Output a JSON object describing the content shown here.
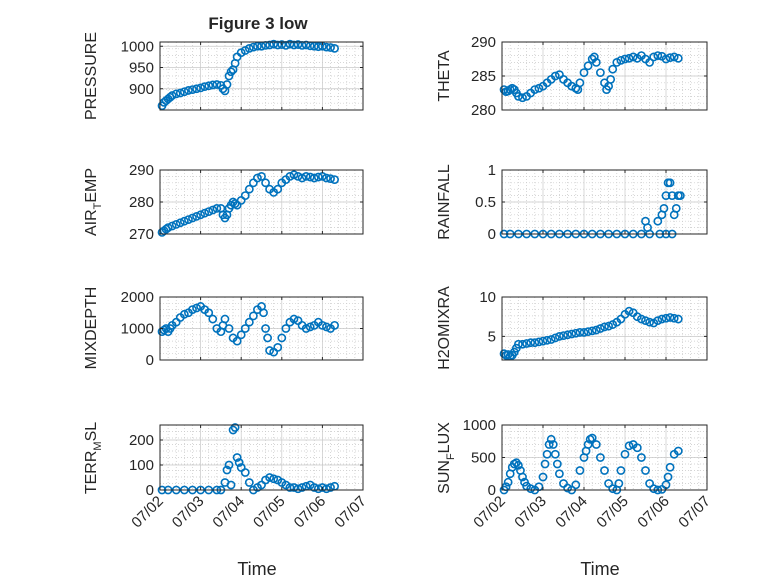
{
  "figure": {
    "title": "Figure 3 low",
    "marker_color": "#0072BD",
    "axis_color": "#262626",
    "grid_color": "#c8c8c8",
    "x_tick_labels": [
      "07/02",
      "07/03",
      "07/04",
      "07/05",
      "07/06",
      "07/07"
    ],
    "x_label": "Time"
  },
  "chart_data": [
    {
      "type": "scatter",
      "ylabel": "PRESSURE",
      "ylim": [
        850,
        1010
      ],
      "yticks": [
        900,
        950,
        1000
      ],
      "grid": true,
      "x": [
        2.05,
        2.1,
        2.15,
        2.2,
        2.25,
        2.3,
        2.4,
        2.5,
        2.6,
        2.7,
        2.8,
        2.9,
        3.0,
        3.1,
        3.2,
        3.3,
        3.4,
        3.5,
        3.55,
        3.6,
        3.65,
        3.7,
        3.75,
        3.8,
        3.85,
        3.9,
        4.0,
        4.1,
        4.2,
        4.3,
        4.4,
        4.5,
        4.6,
        4.7,
        4.8,
        4.9,
        5.0,
        5.1,
        5.2,
        5.3,
        5.4,
        5.5,
        5.6,
        5.7,
        5.8,
        5.9,
        6.0,
        6.1,
        6.2,
        6.3
      ],
      "y": [
        860,
        868,
        872,
        876,
        880,
        884,
        888,
        890,
        893,
        896,
        898,
        900,
        902,
        905,
        907,
        909,
        910,
        908,
        900,
        895,
        910,
        930,
        940,
        945,
        960,
        975,
        985,
        990,
        995,
        998,
        1000,
        1000,
        1002,
        1003,
        1005,
        1003,
        1004,
        1002,
        1005,
        1003,
        1004,
        1002,
        1003,
        1001,
        1000,
        999,
        1000,
        998,
        997,
        995
      ]
    },
    {
      "type": "scatter",
      "ylabel": "THETA",
      "ylim": [
        280,
        290
      ],
      "yticks": [
        280,
        285,
        290
      ],
      "grid": true,
      "x": [
        2.05,
        2.1,
        2.15,
        2.2,
        2.25,
        2.3,
        2.35,
        2.4,
        2.5,
        2.6,
        2.7,
        2.8,
        2.9,
        3.0,
        3.1,
        3.2,
        3.3,
        3.4,
        3.5,
        3.6,
        3.7,
        3.8,
        3.85,
        3.9,
        4.0,
        4.1,
        4.2,
        4.25,
        4.3,
        4.4,
        4.5,
        4.55,
        4.6,
        4.65,
        4.7,
        4.8,
        4.9,
        5.0,
        5.1,
        5.2,
        5.3,
        5.4,
        5.5,
        5.6,
        5.7,
        5.8,
        5.9,
        6.0,
        6.1,
        6.2,
        6.3
      ],
      "y": [
        283,
        282.7,
        282.8,
        283,
        283.2,
        283,
        282.5,
        282,
        281.8,
        282,
        282.5,
        283,
        283.2,
        283.5,
        284,
        284.5,
        285,
        285.2,
        284.5,
        284,
        283.5,
        283.2,
        283,
        284,
        285.5,
        286.5,
        287.5,
        287.8,
        287,
        285.5,
        284,
        283,
        283.5,
        284.5,
        286,
        287,
        287.3,
        287.5,
        287.6,
        287.8,
        287.6,
        288,
        287.5,
        287,
        287.8,
        288,
        287.9,
        287.5,
        287.7,
        287.8,
        287.6
      ]
    },
    {
      "type": "scatter",
      "ylabel": "AIR_TEMP",
      "ylim": [
        270,
        290
      ],
      "yticks": [
        270,
        280,
        290
      ],
      "grid": true,
      "x": [
        2.05,
        2.1,
        2.15,
        2.2,
        2.3,
        2.4,
        2.5,
        2.6,
        2.7,
        2.8,
        2.9,
        3.0,
        3.1,
        3.2,
        3.3,
        3.4,
        3.5,
        3.55,
        3.6,
        3.65,
        3.7,
        3.75,
        3.8,
        3.85,
        3.9,
        4.0,
        4.1,
        4.2,
        4.3,
        4.4,
        4.5,
        4.6,
        4.7,
        4.8,
        4.9,
        5.0,
        5.1,
        5.2,
        5.3,
        5.4,
        5.5,
        5.6,
        5.7,
        5.8,
        5.9,
        6.0,
        6.1,
        6.2,
        6.3
      ],
      "y": [
        270.5,
        271,
        271.5,
        272,
        272.5,
        273,
        273.5,
        274,
        274.5,
        275,
        275.5,
        276,
        276.5,
        277,
        277.5,
        278,
        278,
        276,
        275,
        276,
        278,
        279,
        280,
        279.5,
        279,
        280.5,
        282,
        284,
        286,
        287.5,
        288,
        286,
        284,
        283,
        284,
        286,
        287,
        288,
        288.5,
        288,
        287.5,
        288,
        287.8,
        287.5,
        287.8,
        288,
        287.5,
        287.3,
        287
      ]
    },
    {
      "type": "scatter",
      "ylabel": "RAINFALL",
      "ylim": [
        0,
        1
      ],
      "yticks": [
        0,
        0.5,
        1
      ],
      "grid": true,
      "x": [
        2.05,
        2.2,
        2.4,
        2.6,
        2.8,
        3.0,
        3.2,
        3.4,
        3.6,
        3.8,
        4.0,
        4.2,
        4.4,
        4.6,
        4.8,
        5.0,
        5.2,
        5.4,
        5.6,
        5.8,
        5.9,
        5.95,
        6.0,
        6.05,
        6.1,
        6.15,
        6.2,
        6.25,
        6.3,
        6.35,
        5.5,
        5.55,
        5.85,
        6.0,
        6.15
      ],
      "y": [
        0,
        0,
        0,
        0,
        0,
        0,
        0,
        0,
        0,
        0,
        0,
        0,
        0,
        0,
        0,
        0,
        0,
        0,
        0,
        0.2,
        0.3,
        0.4,
        0.6,
        0.8,
        0.8,
        0.6,
        0.3,
        0.4,
        0.6,
        0.6,
        0.2,
        0.1,
        0,
        0,
        0
      ]
    },
    {
      "type": "scatter",
      "ylabel": "MIXDEPTH",
      "ylim": [
        0,
        2000
      ],
      "yticks": [
        0,
        1000,
        2000
      ],
      "grid": true,
      "x": [
        2.05,
        2.1,
        2.15,
        2.2,
        2.25,
        2.3,
        2.4,
        2.5,
        2.6,
        2.7,
        2.8,
        2.9,
        3.0,
        3.1,
        3.2,
        3.3,
        3.4,
        3.5,
        3.55,
        3.6,
        3.7,
        3.8,
        3.9,
        4.0,
        4.1,
        4.2,
        4.3,
        4.4,
        4.5,
        4.55,
        4.6,
        4.65,
        4.7,
        4.8,
        4.9,
        5.0,
        5.1,
        5.2,
        5.3,
        5.4,
        5.5,
        5.6,
        5.7,
        5.8,
        5.9,
        6.0,
        6.1,
        6.2,
        6.3
      ],
      "y": [
        900,
        950,
        1000,
        900,
        1000,
        1100,
        1200,
        1350,
        1450,
        1500,
        1600,
        1650,
        1700,
        1600,
        1500,
        1300,
        1000,
        900,
        1100,
        1300,
        1000,
        700,
        600,
        800,
        1000,
        1200,
        1400,
        1600,
        1700,
        1500,
        1000,
        700,
        300,
        250,
        400,
        700,
        1000,
        1200,
        1300,
        1250,
        1100,
        1000,
        1050,
        1100,
        1200,
        1100,
        1050,
        1000,
        1100
      ]
    },
    {
      "type": "scatter",
      "ylabel": "H2OMIXRA",
      "ylim": [
        2,
        10
      ],
      "yticks": [
        5,
        10
      ],
      "grid": true,
      "x": [
        2.05,
        2.1,
        2.15,
        2.2,
        2.25,
        2.3,
        2.35,
        2.4,
        2.5,
        2.6,
        2.7,
        2.8,
        2.9,
        3.0,
        3.1,
        3.2,
        3.3,
        3.4,
        3.5,
        3.6,
        3.7,
        3.8,
        3.9,
        4.0,
        4.1,
        4.2,
        4.3,
        4.4,
        4.5,
        4.6,
        4.7,
        4.8,
        4.9,
        5.0,
        5.1,
        5.2,
        5.3,
        5.4,
        5.5,
        5.6,
        5.7,
        5.8,
        5.9,
        6.0,
        6.1,
        6.2,
        6.3
      ],
      "y": [
        2.8,
        2.6,
        2.7,
        2.5,
        2.6,
        3.0,
        3.5,
        4.0,
        4.0,
        4.1,
        4.2,
        4.2,
        4.3,
        4.4,
        4.5,
        4.6,
        4.8,
        5.0,
        5.1,
        5.2,
        5.3,
        5.4,
        5.5,
        5.5,
        5.6,
        5.7,
        5.8,
        6.0,
        6.2,
        6.3,
        6.5,
        6.8,
        7.2,
        7.8,
        8.2,
        8.0,
        7.5,
        7.2,
        7.0,
        6.8,
        6.7,
        7.0,
        7.2,
        7.3,
        7.4,
        7.3,
        7.2
      ]
    },
    {
      "type": "scatter",
      "ylabel": "TERR_MSL",
      "ylim": [
        0,
        260
      ],
      "yticks": [
        0,
        100,
        200
      ],
      "grid": true,
      "x": [
        2.05,
        2.2,
        2.4,
        2.6,
        2.8,
        3.0,
        3.2,
        3.4,
        3.5,
        3.6,
        3.65,
        3.7,
        3.75,
        3.8,
        3.85,
        3.9,
        3.95,
        4.0,
        4.1,
        4.2,
        4.3,
        4.4,
        4.5,
        4.6,
        4.7,
        4.8,
        4.9,
        5.0,
        5.1,
        5.2,
        5.3,
        5.4,
        5.5,
        5.6,
        5.7,
        5.8,
        5.9,
        6.0,
        6.1,
        6.2,
        6.3
      ],
      "y": [
        0,
        0,
        0,
        0,
        0,
        0,
        0,
        0,
        0,
        30,
        80,
        100,
        20,
        240,
        250,
        130,
        110,
        90,
        70,
        30,
        0,
        10,
        20,
        40,
        50,
        45,
        40,
        30,
        20,
        10,
        10,
        5,
        10,
        15,
        20,
        10,
        5,
        10,
        5,
        10,
        15
      ]
    },
    {
      "type": "scatter",
      "ylabel": "SUN_FLUX",
      "ylim": [
        0,
        1000
      ],
      "yticks": [
        0,
        500,
        1000
      ],
      "grid": true,
      "x": [
        2.05,
        2.1,
        2.15,
        2.2,
        2.25,
        2.3,
        2.35,
        2.4,
        2.45,
        2.5,
        2.55,
        2.6,
        2.7,
        2.8,
        2.9,
        3.0,
        3.05,
        3.1,
        3.15,
        3.2,
        3.25,
        3.3,
        3.35,
        3.4,
        3.5,
        3.6,
        3.7,
        3.8,
        3.9,
        4.0,
        4.05,
        4.1,
        4.15,
        4.2,
        4.3,
        4.4,
        4.5,
        4.6,
        4.7,
        4.8,
        4.85,
        4.9,
        5.0,
        5.1,
        5.2,
        5.3,
        5.4,
        5.5,
        5.6,
        5.7,
        5.8,
        5.9,
        6.0,
        6.05,
        6.1,
        6.2,
        6.3
      ],
      "y": [
        0,
        50,
        120,
        250,
        350,
        400,
        420,
        380,
        300,
        200,
        120,
        60,
        20,
        0,
        50,
        200,
        400,
        550,
        700,
        780,
        700,
        550,
        400,
        250,
        100,
        30,
        0,
        80,
        300,
        500,
        600,
        700,
        780,
        800,
        700,
        500,
        300,
        100,
        20,
        0,
        100,
        300,
        550,
        680,
        700,
        650,
        500,
        300,
        100,
        20,
        0,
        10,
        80,
        200,
        350,
        550,
        600
      ]
    }
  ]
}
